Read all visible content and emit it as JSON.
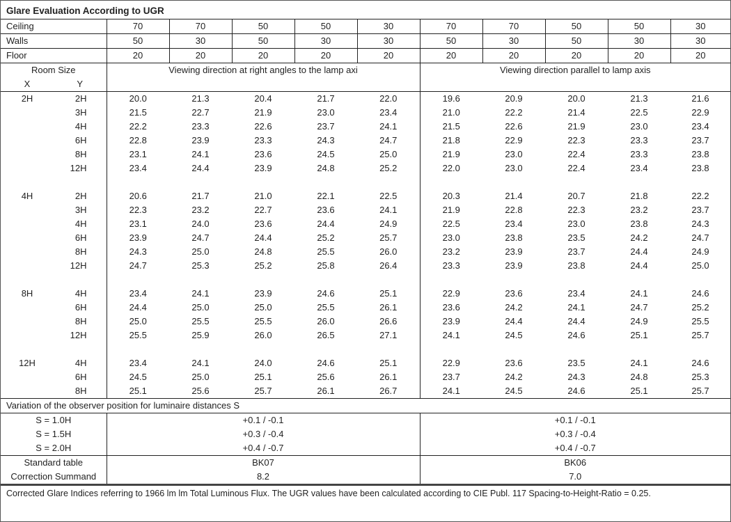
{
  "title": "Glare Evaluation According to UGR",
  "reflectances": [
    {
      "label": "Ceiling",
      "values": [
        "70",
        "70",
        "50",
        "50",
        "30",
        "70",
        "70",
        "50",
        "50",
        "30"
      ]
    },
    {
      "label": "Walls",
      "values": [
        "50",
        "30",
        "50",
        "30",
        "30",
        "50",
        "30",
        "50",
        "30",
        "30"
      ]
    },
    {
      "label": "Floor",
      "values": [
        "20",
        "20",
        "20",
        "20",
        "20",
        "20",
        "20",
        "20",
        "20",
        "20"
      ]
    }
  ],
  "header": {
    "room_size": "Room Size",
    "x": "X",
    "y": "Y",
    "perpendicular": "Viewing direction at right angles to the lamp axi",
    "parallel": "Viewing direction parallel to lamp axis"
  },
  "groups": [
    {
      "x": "2H",
      "rows": [
        {
          "y": "2H",
          "perpendicular": [
            "20.0",
            "21.3",
            "20.4",
            "21.7",
            "22.0"
          ],
          "parallel": [
            "19.6",
            "20.9",
            "20.0",
            "21.3",
            "21.6"
          ]
        },
        {
          "y": "3H",
          "perpendicular": [
            "21.5",
            "22.7",
            "21.9",
            "23.0",
            "23.4"
          ],
          "parallel": [
            "21.0",
            "22.2",
            "21.4",
            "22.5",
            "22.9"
          ]
        },
        {
          "y": "4H",
          "perpendicular": [
            "22.2",
            "23.3",
            "22.6",
            "23.7",
            "24.1"
          ],
          "parallel": [
            "21.5",
            "22.6",
            "21.9",
            "23.0",
            "23.4"
          ]
        },
        {
          "y": "6H",
          "perpendicular": [
            "22.8",
            "23.9",
            "23.3",
            "24.3",
            "24.7"
          ],
          "parallel": [
            "21.8",
            "22.9",
            "22.3",
            "23.3",
            "23.7"
          ]
        },
        {
          "y": "8H",
          "perpendicular": [
            "23.1",
            "24.1",
            "23.6",
            "24.5",
            "25.0"
          ],
          "parallel": [
            "21.9",
            "23.0",
            "22.4",
            "23.3",
            "23.8"
          ]
        },
        {
          "y": "12H",
          "perpendicular": [
            "23.4",
            "24.4",
            "23.9",
            "24.8",
            "25.2"
          ],
          "parallel": [
            "22.0",
            "23.0",
            "22.4",
            "23.4",
            "23.8"
          ]
        }
      ]
    },
    {
      "x": "4H",
      "rows": [
        {
          "y": "2H",
          "perpendicular": [
            "20.6",
            "21.7",
            "21.0",
            "22.1",
            "22.5"
          ],
          "parallel": [
            "20.3",
            "21.4",
            "20.7",
            "21.8",
            "22.2"
          ]
        },
        {
          "y": "3H",
          "perpendicular": [
            "22.3",
            "23.2",
            "22.7",
            "23.6",
            "24.1"
          ],
          "parallel": [
            "21.9",
            "22.8",
            "22.3",
            "23.2",
            "23.7"
          ]
        },
        {
          "y": "4H",
          "perpendicular": [
            "23.1",
            "24.0",
            "23.6",
            "24.4",
            "24.9"
          ],
          "parallel": [
            "22.5",
            "23.4",
            "23.0",
            "23.8",
            "24.3"
          ]
        },
        {
          "y": "6H",
          "perpendicular": [
            "23.9",
            "24.7",
            "24.4",
            "25.2",
            "25.7"
          ],
          "parallel": [
            "23.0",
            "23.8",
            "23.5",
            "24.2",
            "24.7"
          ]
        },
        {
          "y": "8H",
          "perpendicular": [
            "24.3",
            "25.0",
            "24.8",
            "25.5",
            "26.0"
          ],
          "parallel": [
            "23.2",
            "23.9",
            "23.7",
            "24.4",
            "24.9"
          ]
        },
        {
          "y": "12H",
          "perpendicular": [
            "24.7",
            "25.3",
            "25.2",
            "25.8",
            "26.4"
          ],
          "parallel": [
            "23.3",
            "23.9",
            "23.8",
            "24.4",
            "25.0"
          ]
        }
      ]
    },
    {
      "x": "8H",
      "rows": [
        {
          "y": "4H",
          "perpendicular": [
            "23.4",
            "24.1",
            "23.9",
            "24.6",
            "25.1"
          ],
          "parallel": [
            "22.9",
            "23.6",
            "23.4",
            "24.1",
            "24.6"
          ]
        },
        {
          "y": "6H",
          "perpendicular": [
            "24.4",
            "25.0",
            "25.0",
            "25.5",
            "26.1"
          ],
          "parallel": [
            "23.6",
            "24.2",
            "24.1",
            "24.7",
            "25.2"
          ]
        },
        {
          "y": "8H",
          "perpendicular": [
            "25.0",
            "25.5",
            "25.5",
            "26.0",
            "26.6"
          ],
          "parallel": [
            "23.9",
            "24.4",
            "24.4",
            "24.9",
            "25.5"
          ]
        },
        {
          "y": "12H",
          "perpendicular": [
            "25.5",
            "25.9",
            "26.0",
            "26.5",
            "27.1"
          ],
          "parallel": [
            "24.1",
            "24.5",
            "24.6",
            "25.1",
            "25.7"
          ]
        }
      ]
    },
    {
      "x": "12H",
      "rows": [
        {
          "y": "4H",
          "perpendicular": [
            "23.4",
            "24.1",
            "24.0",
            "24.6",
            "25.1"
          ],
          "parallel": [
            "22.9",
            "23.6",
            "23.5",
            "24.1",
            "24.6"
          ]
        },
        {
          "y": "6H",
          "perpendicular": [
            "24.5",
            "25.0",
            "25.1",
            "25.6",
            "26.1"
          ],
          "parallel": [
            "23.7",
            "24.2",
            "24.3",
            "24.8",
            "25.3"
          ]
        },
        {
          "y": "8H",
          "perpendicular": [
            "25.1",
            "25.6",
            "25.7",
            "26.1",
            "26.7"
          ],
          "parallel": [
            "24.1",
            "24.5",
            "24.6",
            "25.1",
            "25.7"
          ]
        }
      ]
    }
  ],
  "variation": {
    "heading": "Variation of the observer position for luminaire distances S",
    "rows": [
      {
        "label": "S = 1.0H",
        "perpendicular": "+0.1 / -0.1",
        "parallel": "+0.1 / -0.1"
      },
      {
        "label": "S = 1.5H",
        "perpendicular": "+0.3 / -0.4",
        "parallel": "+0.3 / -0.4"
      },
      {
        "label": "S = 2.0H",
        "perpendicular": "+0.4 / -0.7",
        "parallel": "+0.4 / -0.7"
      }
    ]
  },
  "standard": {
    "rows": [
      {
        "label": "Standard table",
        "perpendicular": "BK07",
        "parallel": "BK06"
      },
      {
        "label": "Correction Summand",
        "perpendicular": "8.2",
        "parallel": "7.0"
      }
    ]
  },
  "footnote": "Corrected Glare Indices referring to 1966 lm lm Total Luminous Flux. The UGR values have been calculated according to CIE Publ. 117    Spacing-to-Height-Ratio = 0.25."
}
